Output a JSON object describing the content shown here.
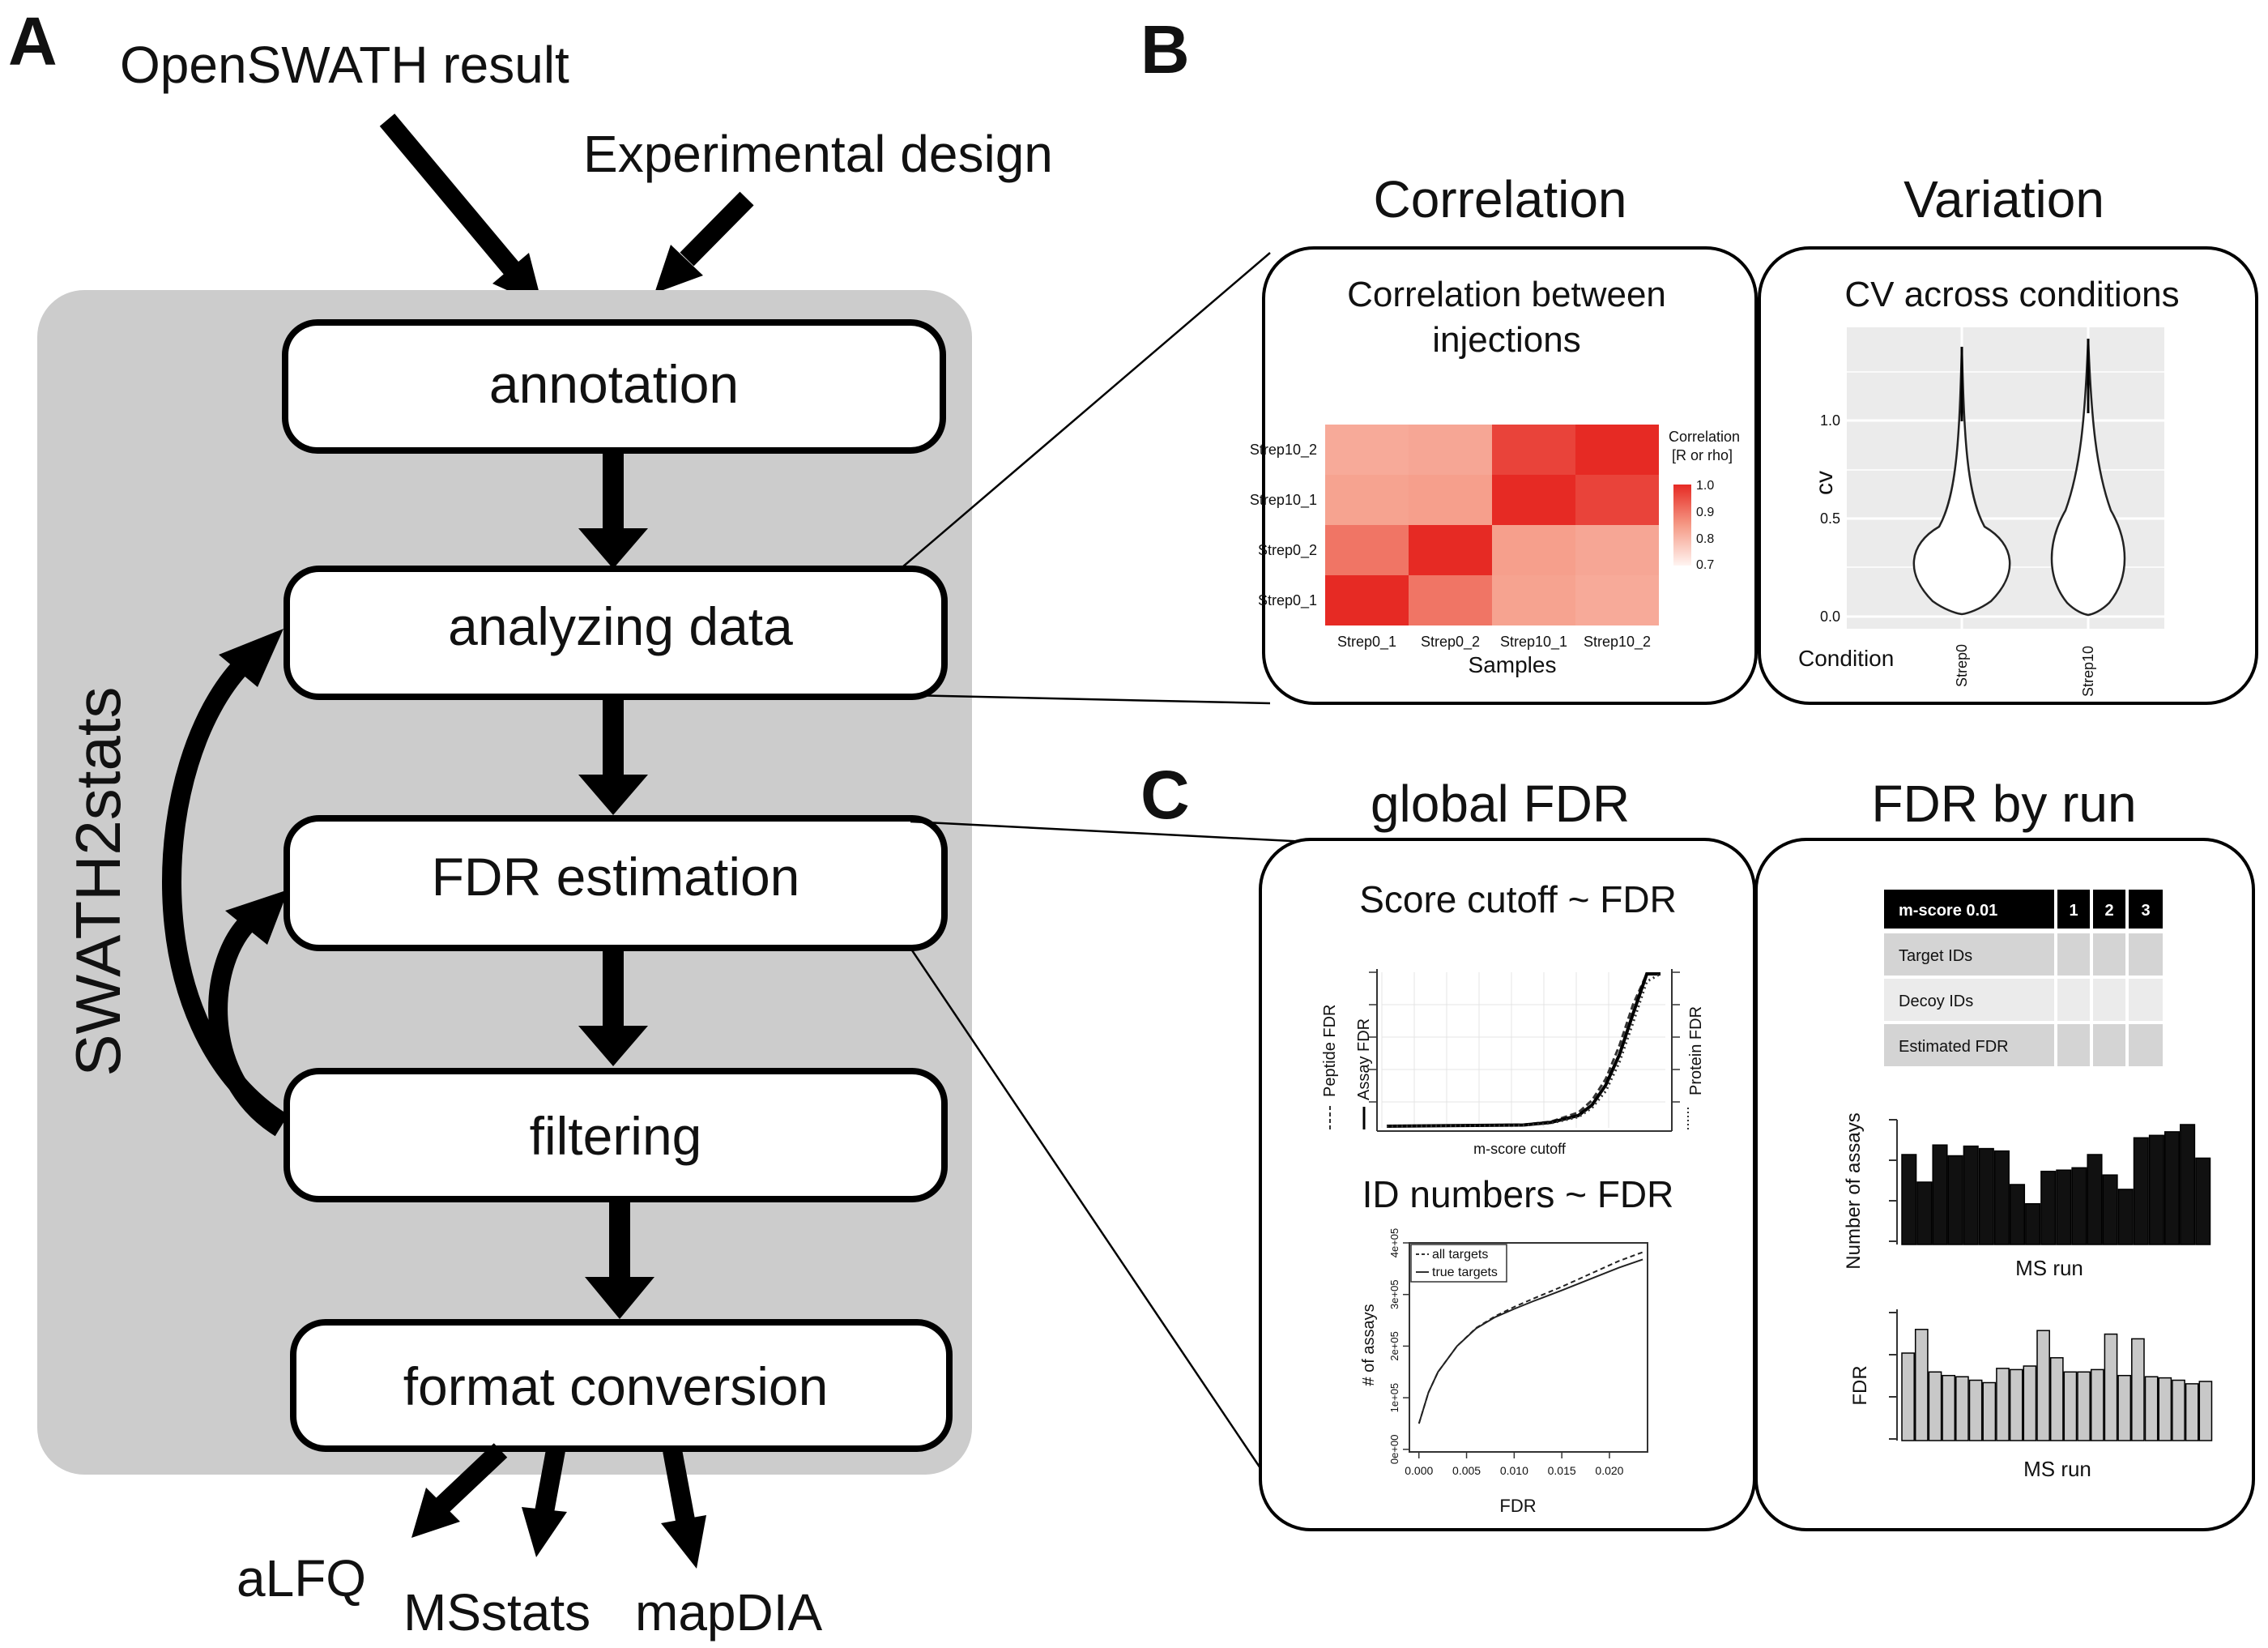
{
  "panel_a": {
    "letter": "A",
    "input_openswath": "OpenSWATH result",
    "input_design": "Experimental design",
    "side_label": "SWATH2stats",
    "steps": [
      "annotation",
      "analyzing data",
      "FDR estimation",
      "filtering",
      "format conversion"
    ],
    "outputs": [
      "aLFQ",
      "MSstats",
      "mapDIA"
    ]
  },
  "panel_b": {
    "letter": "B",
    "correlation": {
      "heading": "Correlation",
      "title_line1": "Correlation between",
      "title_line2": "injections",
      "legend_title_line1": "Correlation",
      "legend_title_line2": "[R or rho]",
      "legend_ticks": [
        "1.0",
        "0.9",
        "0.8",
        "0.7"
      ],
      "xlabel": "Samples"
    },
    "variation": {
      "heading": "Variation",
      "title": "CV across conditions",
      "ylabel": "cv",
      "xlabel": "Condition",
      "yticks": [
        "1.0",
        "0.5",
        "0.0"
      ]
    }
  },
  "panel_c": {
    "letter": "C",
    "global_fdr": {
      "heading": "global FDR",
      "score_title": "Score cutoff ~ FDR",
      "score_xlabel": "m-score cutoff",
      "score_left_labels": [
        "Peptide FDR",
        "Assay FDR"
      ],
      "score_right_label": "Protein FDR",
      "id_title": "ID numbers ~ FDR",
      "id_xlabel": "FDR",
      "id_ylabel": "# of assays",
      "id_legend": [
        "all targets",
        "true targets"
      ]
    },
    "fdr_by_run": {
      "heading": "FDR by run",
      "table_header": [
        "m-score 0.01",
        "1",
        "2",
        "3"
      ],
      "table_rows": [
        "Target IDs",
        "Decoy IDs",
        "Estimated FDR"
      ],
      "bar1_ylabel": "Number of assays",
      "bar1_xlabel": "MS run",
      "bar2_ylabel": "FDR",
      "bar2_xlabel": "MS run"
    }
  },
  "chart_data": [
    {
      "type": "heatmap",
      "title": "Correlation between injections",
      "xlabel": "Samples",
      "x": [
        "Strep0_1",
        "Strep0_2",
        "Strep10_1",
        "Strep10_2"
      ],
      "y": [
        "Strep0_1",
        "Strep0_2",
        "Strep10_1",
        "Strep10_2"
      ],
      "legend_title": "Correlation [R or rho]",
      "value_range": [
        0.7,
        1.0
      ],
      "values": [
        [
          1.0,
          0.97,
          0.93,
          0.91
        ],
        [
          0.97,
          1.0,
          0.94,
          0.92
        ],
        [
          0.93,
          0.94,
          1.0,
          0.99
        ],
        [
          0.91,
          0.92,
          0.99,
          1.0
        ]
      ]
    },
    {
      "type": "violin",
      "title": "CV across conditions",
      "xlabel": "Condition",
      "ylabel": "cv",
      "categories": [
        "Strep0",
        "Strep10"
      ],
      "ylim": [
        -0.05,
        1.45
      ],
      "yticks": [
        0.0,
        0.5,
        1.0
      ],
      "max": [
        1.37,
        1.4
      ]
    },
    {
      "type": "line",
      "title": "Score cutoff ~ FDR",
      "xlabel": "m-score cutoff",
      "series": [
        {
          "name": "Peptide FDR",
          "style": "dashed",
          "x": [
            0,
            0.5,
            0.6,
            0.7,
            0.75,
            0.8,
            0.85,
            0.9,
            0.95,
            1.0
          ],
          "y": [
            0,
            0.01,
            0.03,
            0.09,
            0.17,
            0.31,
            0.53,
            0.8,
            1.0,
            1.0
          ]
        },
        {
          "name": "Assay FDR",
          "style": "solid",
          "x": [
            0,
            0.5,
            0.6,
            0.7,
            0.75,
            0.8,
            0.85,
            0.9,
            0.95,
            1.0
          ],
          "y": [
            0,
            0.008,
            0.025,
            0.07,
            0.14,
            0.27,
            0.47,
            0.74,
            1.0,
            1.0
          ]
        },
        {
          "name": "Protein FDR",
          "style": "dotted",
          "x": [
            0,
            0.5,
            0.6,
            0.7,
            0.75,
            0.8,
            0.85,
            0.9,
            0.95,
            1.0
          ],
          "y": [
            0,
            0.006,
            0.02,
            0.06,
            0.12,
            0.23,
            0.42,
            0.68,
            0.95,
            1.0
          ]
        }
      ]
    },
    {
      "type": "line",
      "title": "ID numbers ~ FDR",
      "xlabel": "FDR",
      "ylabel": "# of assays",
      "xlim": [
        -0.001,
        0.024
      ],
      "ylim": [
        -5000,
        400000
      ],
      "xticks": [
        "0.000",
        "0.005",
        "0.010",
        "0.015",
        "0.020"
      ],
      "yticks": [
        "0e+00",
        "1e+05",
        "2e+05",
        "3e+05",
        "4e+05"
      ],
      "series": [
        {
          "name": "all targets",
          "style": "dashed",
          "x": [
            0,
            0.001,
            0.002,
            0.004,
            0.006,
            0.008,
            0.01,
            0.012,
            0.015,
            0.018,
            0.021,
            0.0235
          ],
          "y": [
            50000,
            110000,
            150000,
            200000,
            235000,
            258000,
            276000,
            292000,
            315000,
            340000,
            365000,
            382000
          ]
        },
        {
          "name": "true targets",
          "style": "solid",
          "x": [
            0,
            0.001,
            0.002,
            0.004,
            0.006,
            0.008,
            0.01,
            0.012,
            0.015,
            0.018,
            0.021,
            0.0235
          ],
          "y": [
            50000,
            110000,
            150000,
            200000,
            234000,
            256000,
            272000,
            287000,
            308000,
            330000,
            352000,
            368000
          ]
        }
      ]
    },
    {
      "type": "bar",
      "xlabel": "MS run",
      "ylabel": "Number of assays",
      "ylim": [
        0,
        10
      ],
      "values": [
        7.5,
        5.2,
        8.3,
        7.4,
        8.2,
        8.0,
        7.8,
        5.0,
        3.4,
        6.1,
        6.2,
        6.4,
        7.5,
        5.8,
        4.6,
        8.9,
        9.1,
        9.4,
        10.0,
        7.2
      ]
    },
    {
      "type": "bar",
      "xlabel": "MS run",
      "ylabel": "FDR",
      "ylim": [
        0,
        10
      ],
      "values": [
        7.4,
        9.4,
        5.8,
        5.5,
        5.4,
        5.1,
        4.9,
        6.1,
        6.0,
        6.3,
        9.3,
        7.0,
        5.8,
        5.8,
        6.0,
        9.0,
        5.5,
        8.6,
        5.4,
        5.3,
        5.1,
        4.8,
        5.0
      ]
    }
  ]
}
